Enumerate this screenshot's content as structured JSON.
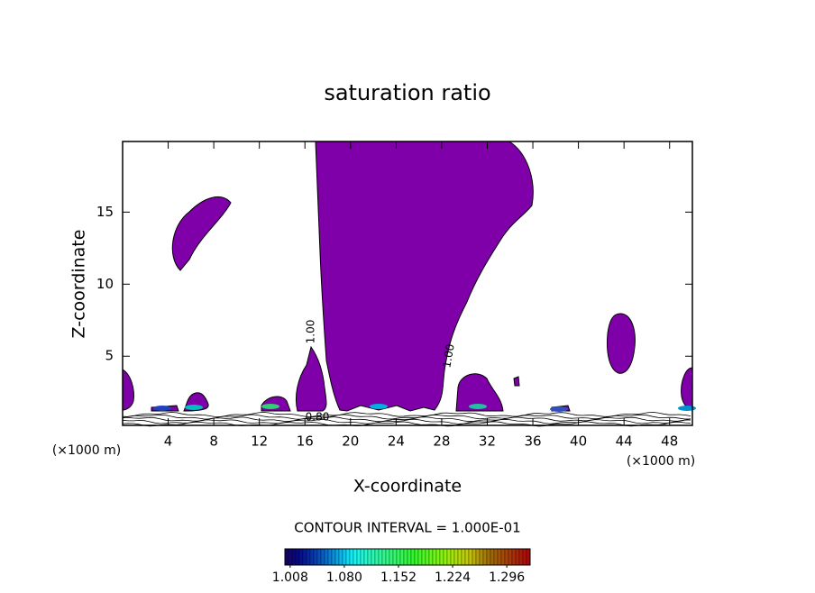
{
  "chart_data": {
    "type": "contour",
    "title": "saturation ratio",
    "x_label": "X-coordinate",
    "y_label": "Z-coordinate",
    "x_unit": "(×1000 m)",
    "xlim": [
      0,
      50
    ],
    "xticks": [
      4,
      8,
      12,
      16,
      20,
      24,
      28,
      32,
      36,
      40,
      44,
      48
    ],
    "ylim": [
      0.2,
      19.9
    ],
    "yticks": [
      5,
      10,
      15
    ],
    "fill_color": "#7f00a8",
    "line_color": "#000000",
    "contour_labels": [
      {
        "value": 1.0,
        "label": "1.00"
      },
      {
        "value": 1.0,
        "label": "1.00"
      },
      {
        "value": 0.8,
        "label": "0.80"
      }
    ],
    "colorbar_title": "CONTOUR INTERVAL = 1.000E-01",
    "clim": [
      1.001,
      1.327
    ],
    "colorbar_ticks": [
      1.008,
      {
        "value": 1.08,
        "label": "1.080"
      },
      1.152,
      1.224,
      1.296
    ]
  }
}
